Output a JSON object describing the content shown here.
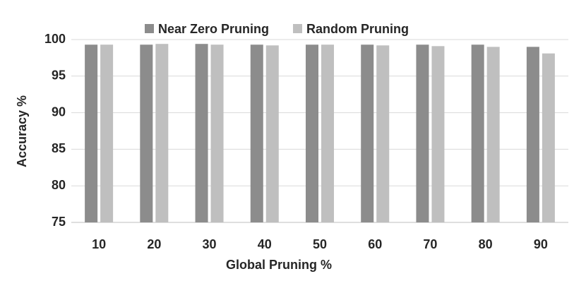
{
  "chart_data": {
    "type": "bar",
    "x_label": "Global Pruning %",
    "y_label": "Accuracy %",
    "categories": [
      "10",
      "20",
      "30",
      "40",
      "50",
      "60",
      "70",
      "80",
      "90"
    ],
    "series": [
      {
        "name": "Near Zero Pruning",
        "color": "#8c8c8c",
        "values": [
          99.3,
          99.3,
          99.4,
          99.3,
          99.3,
          99.3,
          99.3,
          99.3,
          99.0
        ]
      },
      {
        "name": "Random Pruning",
        "color": "#bfbfbf",
        "values": [
          99.3,
          99.4,
          99.3,
          99.2,
          99.3,
          99.2,
          99.1,
          99.0,
          98.1
        ]
      }
    ],
    "ylim": [
      75,
      100
    ],
    "yticks": [
      75,
      80,
      85,
      90,
      95,
      100
    ],
    "grid": true,
    "legend": "top"
  }
}
